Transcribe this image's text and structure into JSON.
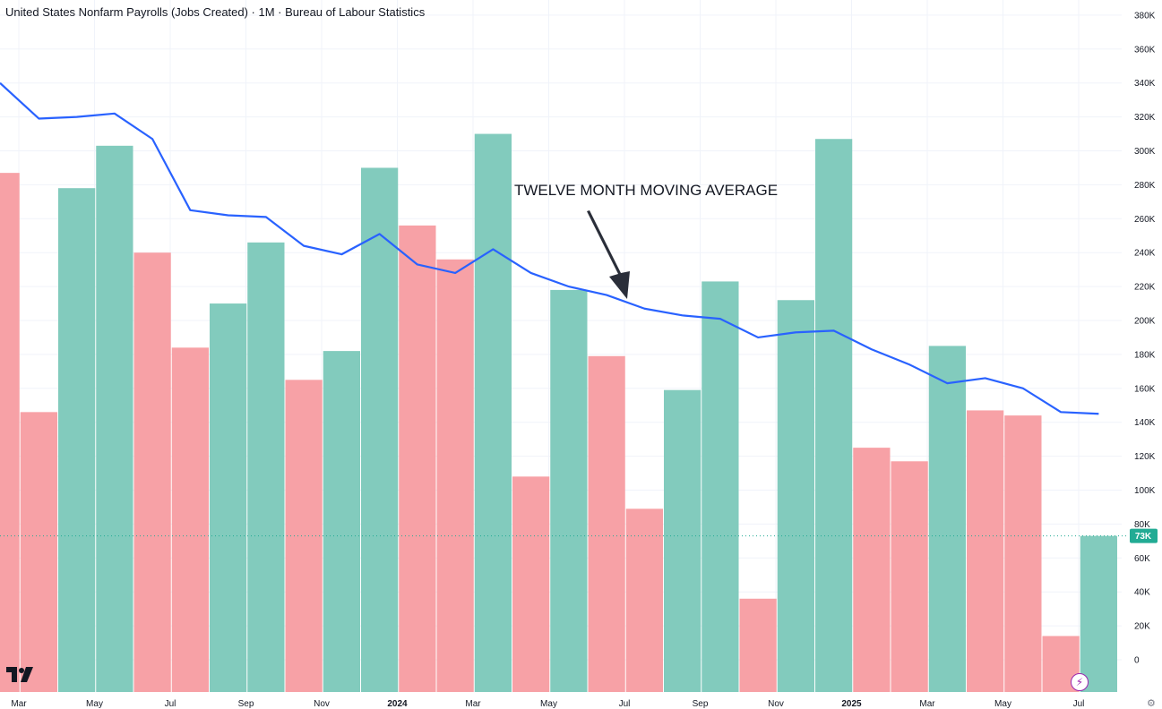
{
  "header": {
    "title": "United States Nonfarm Payrolls (Jobs Created) · 1M · Bureau of Labour Statistics"
  },
  "annotation": {
    "text": "TWELVE MONTH MOVING AVERAGE"
  },
  "last_value_label": "73K",
  "chart_data": {
    "type": "bar",
    "title": "United States Nonfarm Payrolls (Jobs Created) · 1M · Bureau of Labour Statistics",
    "x_tick_labels": [
      "Mar",
      "May",
      "Jul",
      "Sep",
      "Nov",
      "2024",
      "Mar",
      "May",
      "Jul",
      "Sep",
      "Nov",
      "2025",
      "Mar",
      "May",
      "Jul"
    ],
    "y_tick_labels": [
      "0",
      "20K",
      "40K",
      "60K",
      "80K",
      "100K",
      "120K",
      "140K",
      "160K",
      "180K",
      "200K",
      "220K",
      "240K",
      "260K",
      "280K",
      "300K",
      "320K",
      "340K",
      "360K",
      "380K"
    ],
    "ylim": [
      -20000,
      385000
    ],
    "grid": true,
    "categories": [
      "2023-02",
      "2023-03",
      "2023-04",
      "2023-05",
      "2023-06",
      "2023-07",
      "2023-08",
      "2023-09",
      "2023-10",
      "2023-11",
      "2023-12",
      "2024-01",
      "2024-02",
      "2024-03",
      "2024-04",
      "2024-05",
      "2024-06",
      "2024-07",
      "2024-08",
      "2024-09",
      "2024-10",
      "2024-11",
      "2024-12",
      "2025-01",
      "2025-02",
      "2025-03",
      "2025-04",
      "2025-05",
      "2025-06",
      "2025-07"
    ],
    "series": [
      {
        "type": "bar",
        "values": [
          287000,
          146000,
          278000,
          303000,
          240000,
          184000,
          210000,
          246000,
          165000,
          182000,
          290000,
          256000,
          236000,
          310000,
          108000,
          218000,
          179000,
          89000,
          159000,
          223000,
          36000,
          212000,
          307000,
          125000,
          117000,
          185000,
          147000,
          144000,
          14000,
          73000
        ],
        "colors": [
          "#f7a1a6",
          "#f7a1a6",
          "#82cbbd",
          "#82cbbd",
          "#f7a1a6",
          "#f7a1a6",
          "#82cbbd",
          "#82cbbd",
          "#f7a1a6",
          "#82cbbd",
          "#82cbbd",
          "#f7a1a6",
          "#f7a1a6",
          "#82cbbd",
          "#f7a1a6",
          "#82cbbd",
          "#f7a1a6",
          "#f7a1a6",
          "#82cbbd",
          "#82cbbd",
          "#f7a1a6",
          "#82cbbd",
          "#82cbbd",
          "#f7a1a6",
          "#f7a1a6",
          "#82cbbd",
          "#f7a1a6",
          "#f7a1a6",
          "#f7a1a6",
          "#82cbbd"
        ]
      },
      {
        "type": "line",
        "color": "#2962ff",
        "values": [
          340000,
          319000,
          320000,
          322000,
          307000,
          265000,
          262000,
          261000,
          244000,
          239000,
          251000,
          233000,
          228000,
          242000,
          228000,
          220000,
          215000,
          207000,
          203000,
          201000,
          190000,
          193000,
          194000,
          183000,
          174000,
          163000,
          166000,
          160000,
          146000,
          145000
        ]
      }
    ]
  },
  "colors": {
    "up": "#82cbbd",
    "down": "#f7a1a6",
    "average_line": "#2962ff",
    "last_value_badge": "#22ab94"
  }
}
